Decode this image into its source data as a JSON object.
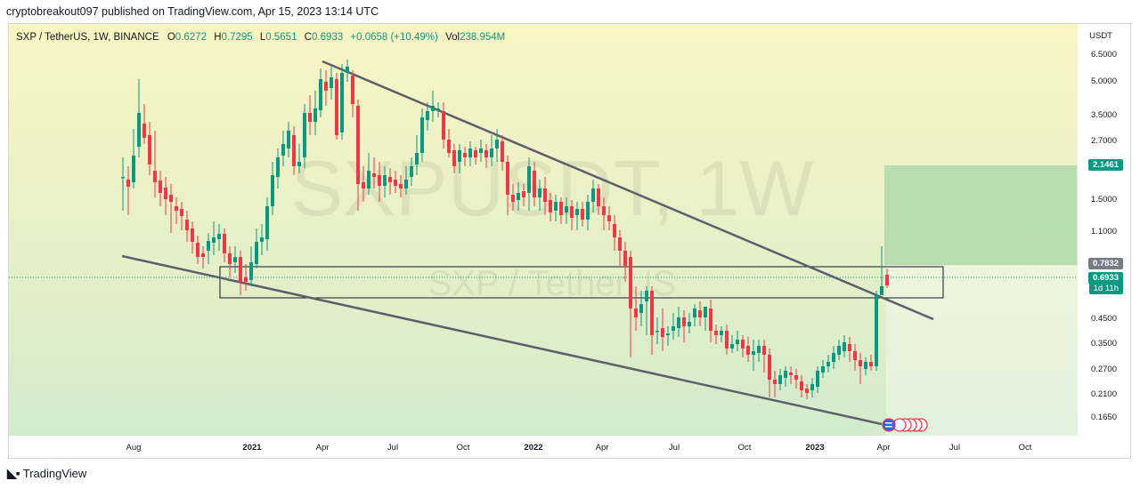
{
  "publisher_line": "cryptobreakout097 published on TradingView.com, Apr 15, 2023 13:14 UTC",
  "symbol": {
    "name": "SXP / TetherUS, 1W, BINANCE",
    "open_label": "O",
    "open": "0.6272",
    "high_label": "H",
    "high": "0.7295",
    "low_label": "L",
    "low": "0.5651",
    "close_label": "C",
    "close": "0.6933",
    "change": "+0.0658 (+10.49%)",
    "vol_label": "Vol",
    "vol": "238.954M"
  },
  "watermark": {
    "ticker": "SXPUSDT, 1W",
    "pair": "SXP / TetherUS"
  },
  "price_axis": {
    "unit": "USDT",
    "ticks": [
      "6.5000",
      "5.0000",
      "3.5000",
      "2.7000",
      "1.5000",
      "1.1000",
      "0.4500",
      "0.3500",
      "0.2700",
      "0.2100",
      "0.1650"
    ],
    "badges": [
      {
        "label": "2.1461",
        "color": "#089981"
      },
      {
        "label": "0.7832",
        "color": "#787b86"
      },
      {
        "label": "0.6933",
        "color": "#089981"
      },
      {
        "label": "1d 11h",
        "color": "#089981"
      }
    ]
  },
  "time_axis": {
    "ticks": [
      {
        "label": "Aug",
        "bold": false
      },
      {
        "label": "2021",
        "bold": true
      },
      {
        "label": "Apr",
        "bold": false
      },
      {
        "label": "Jul",
        "bold": false
      },
      {
        "label": "Oct",
        "bold": false
      },
      {
        "label": "2022",
        "bold": true
      },
      {
        "label": "Apr",
        "bold": false
      },
      {
        "label": "Jul",
        "bold": false
      },
      {
        "label": "Oct",
        "bold": false
      },
      {
        "label": "2023",
        "bold": true
      },
      {
        "label": "Apr",
        "bold": false
      },
      {
        "label": "Jul",
        "bold": false
      },
      {
        "label": "Oct",
        "bold": false
      }
    ]
  },
  "colors": {
    "up": "#089981",
    "down": "#f23645",
    "bg_top": "#f7f3c4",
    "bg_bottom": "#d6edcc",
    "target_zone": "#a5d6a7"
  },
  "footer": {
    "brand": "TradingView",
    "logo_icon": "tradingview-logo-icon"
  }
}
